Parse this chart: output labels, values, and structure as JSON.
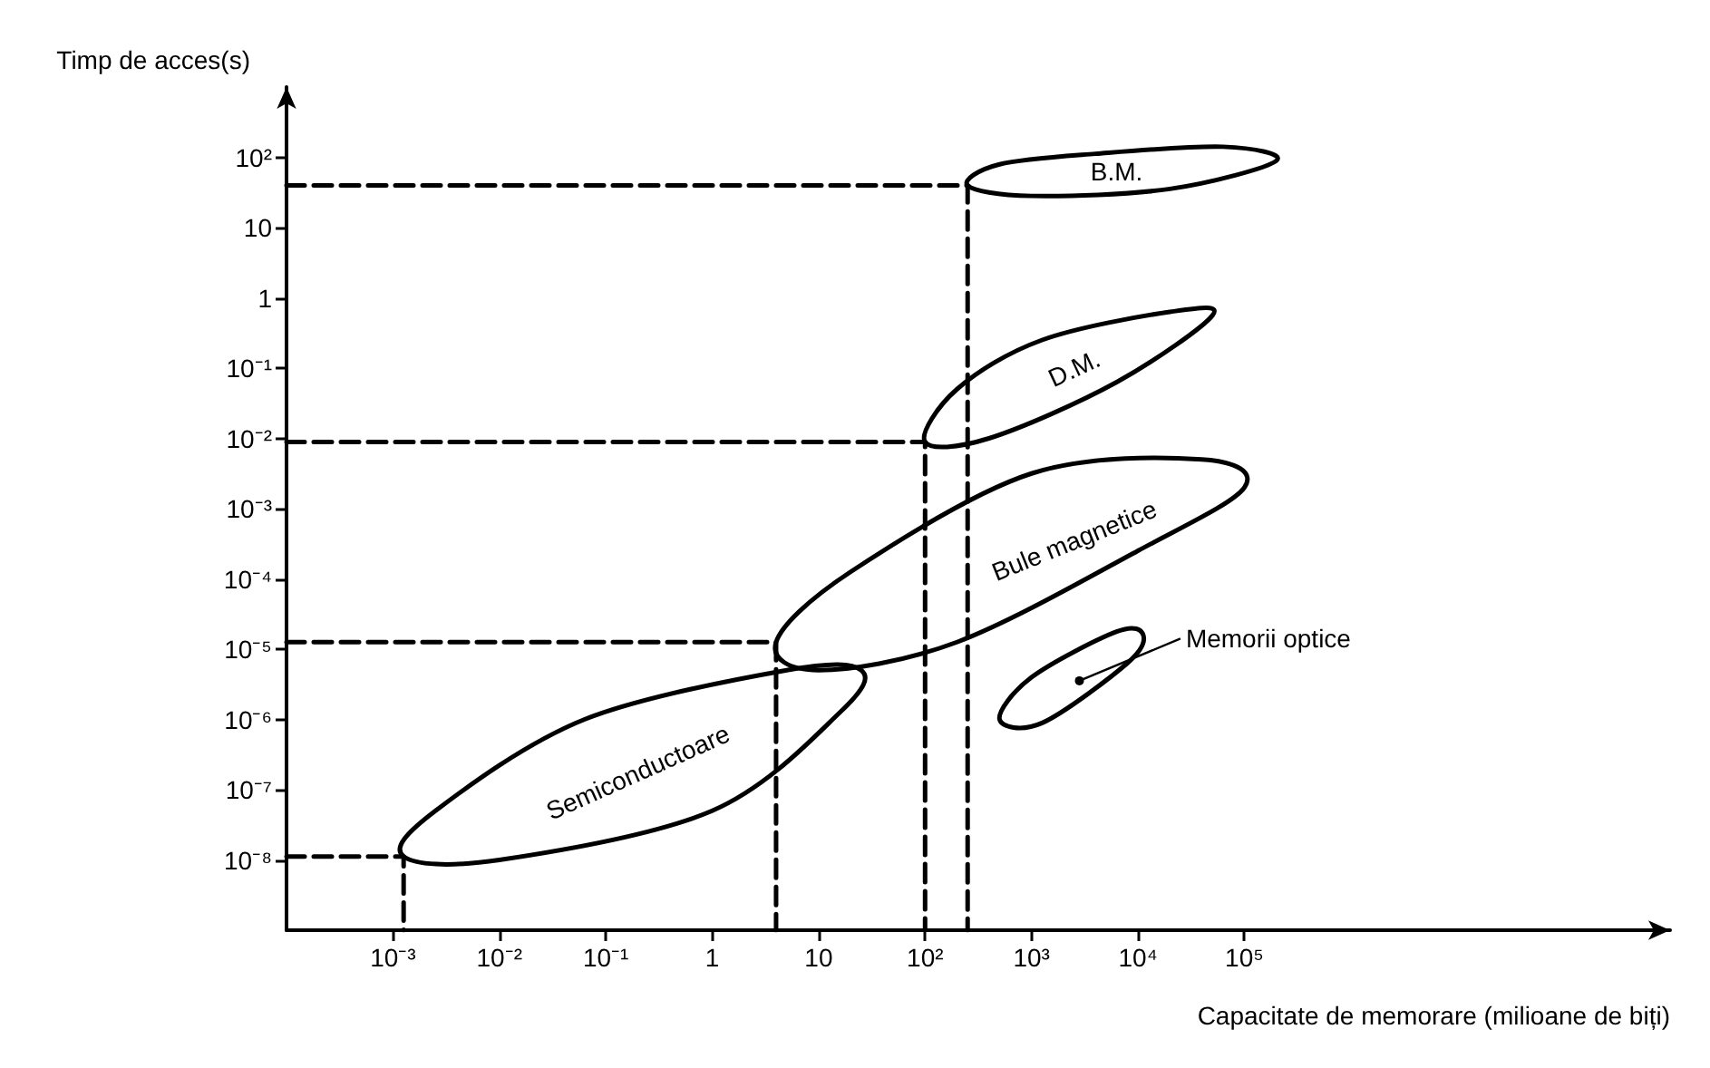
{
  "chart_data": {
    "type": "line",
    "xlabel": "Capacitate de memorare (milioane de biți)",
    "ylabel": "Timp de acces(s)",
    "log": "xy",
    "xlim": [
      0.0001,
      1000000000
    ],
    "ylim": [
      1e-09,
      1000
    ],
    "xticks": [
      {
        "value": 0.001,
        "label": "10⁻³"
      },
      {
        "value": 0.01,
        "label": "10⁻²"
      },
      {
        "value": 0.1,
        "label": "10⁻¹"
      },
      1,
      10,
      {
        "value": 100,
        "label": "10²"
      },
      {
        "value": 1000,
        "label": "10³"
      },
      {
        "value": 10000,
        "label": "10⁴"
      },
      {
        "value": 100000,
        "label": "10⁵"
      }
    ],
    "yticks": [
      {
        "value": 1e-08,
        "label": "10⁻⁸"
      },
      {
        "value": 1e-07,
        "label": "10⁻⁷"
      },
      {
        "value": 1e-06,
        "label": "10⁻⁶"
      },
      {
        "value": 1e-05,
        "label": "10⁻⁵"
      },
      {
        "value": 0.0001,
        "label": "10⁻⁴"
      },
      {
        "value": 0.001,
        "label": "10⁻³"
      },
      {
        "value": 0.01,
        "label": "10⁻²"
      },
      {
        "value": 0.1,
        "label": "10⁻¹"
      },
      1,
      10,
      {
        "value": 100,
        "label": "10²"
      }
    ],
    "grid": false,
    "marker": "none",
    "series": [
      {
        "color": "#000000",
        "line_style": "dashed",
        "x": [
          0.0001,
          251,
          251
        ],
        "values": [
          39.8,
          39.8,
          1e-09
        ]
      },
      {
        "color": "#000000",
        "line_style": "dashed",
        "x": [
          0.0001,
          100,
          100
        ],
        "values": [
          0.00891,
          0.00891,
          1e-09
        ]
      },
      {
        "color": "#000000",
        "line_style": "dashed",
        "x": [
          0.0001,
          3.98,
          3.98
        ],
        "values": [
          1.26e-05,
          1.26e-05,
          1e-09
        ]
      },
      {
        "color": "#000000",
        "line_style": "dashed",
        "x": [
          0.0001,
          0.00126,
          0.00126
        ],
        "values": [
          1.12e-08,
          1.12e-08,
          1e-09
        ]
      }
    ],
    "annotations": [
      "B.M.",
      "D.M.",
      "Bule magnetice",
      "Semiconductoare",
      "Memorii optice"
    ]
  }
}
